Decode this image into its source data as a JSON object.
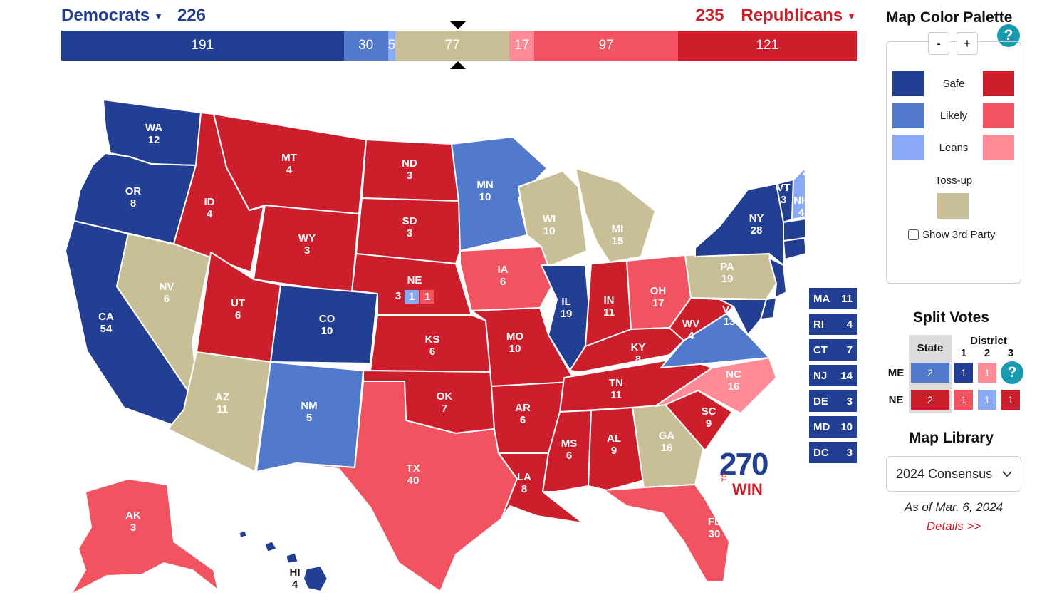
{
  "colors": {
    "dem_safe": "#233f93",
    "dem_likely": "#5179cc",
    "dem_leans": "#8aaaf8",
    "tossup": "#c9bf97",
    "rep_safe": "#cc1f2b",
    "rep_likely": "#f25361",
    "rep_leans": "#ff8b97"
  },
  "header": {
    "dem_label": "Democrats",
    "dem_total": "226",
    "rep_label": "Republicans",
    "rep_total": "235"
  },
  "tally_bar": [
    {
      "value": 191,
      "label": "191",
      "color": "#233f93"
    },
    {
      "value": 30,
      "label": "30",
      "color": "#5179cc"
    },
    {
      "value": 5,
      "label": "5",
      "color": "#8aaaf8"
    },
    {
      "value": 77,
      "label": "77",
      "color": "#c9bf97"
    },
    {
      "value": 17,
      "label": "17",
      "color": "#ff8b97"
    },
    {
      "value": 97,
      "label": "97",
      "color": "#f25361"
    },
    {
      "value": 121,
      "label": "121",
      "color": "#cc1f2b"
    }
  ],
  "states": [
    {
      "abbr": "WA",
      "ev": "12",
      "rating": "dem_safe"
    },
    {
      "abbr": "OR",
      "ev": "8",
      "rating": "dem_safe"
    },
    {
      "abbr": "CA",
      "ev": "54",
      "rating": "dem_safe"
    },
    {
      "abbr": "NV",
      "ev": "6",
      "rating": "tossup"
    },
    {
      "abbr": "ID",
      "ev": "4",
      "rating": "rep_safe"
    },
    {
      "abbr": "MT",
      "ev": "4",
      "rating": "rep_safe"
    },
    {
      "abbr": "WY",
      "ev": "3",
      "rating": "rep_safe"
    },
    {
      "abbr": "UT",
      "ev": "6",
      "rating": "rep_safe"
    },
    {
      "abbr": "AZ",
      "ev": "11",
      "rating": "tossup"
    },
    {
      "abbr": "CO",
      "ev": "10",
      "rating": "dem_safe"
    },
    {
      "abbr": "NM",
      "ev": "5",
      "rating": "dem_likely"
    },
    {
      "abbr": "ND",
      "ev": "3",
      "rating": "rep_safe"
    },
    {
      "abbr": "SD",
      "ev": "3",
      "rating": "rep_safe"
    },
    {
      "abbr": "NE",
      "ev": "",
      "rating": "rep_safe"
    },
    {
      "abbr": "KS",
      "ev": "6",
      "rating": "rep_safe"
    },
    {
      "abbr": "OK",
      "ev": "7",
      "rating": "rep_safe"
    },
    {
      "abbr": "TX",
      "ev": "40",
      "rating": "rep_likely"
    },
    {
      "abbr": "MN",
      "ev": "10",
      "rating": "dem_likely"
    },
    {
      "abbr": "IA",
      "ev": "6",
      "rating": "rep_likely"
    },
    {
      "abbr": "MO",
      "ev": "10",
      "rating": "rep_safe"
    },
    {
      "abbr": "AR",
      "ev": "6",
      "rating": "rep_safe"
    },
    {
      "abbr": "LA",
      "ev": "8",
      "rating": "rep_safe"
    },
    {
      "abbr": "WI",
      "ev": "10",
      "rating": "tossup"
    },
    {
      "abbr": "IL",
      "ev": "19",
      "rating": "dem_safe"
    },
    {
      "abbr": "MI",
      "ev": "15",
      "rating": "tossup"
    },
    {
      "abbr": "IN",
      "ev": "11",
      "rating": "rep_safe"
    },
    {
      "abbr": "OH",
      "ev": "17",
      "rating": "rep_likely"
    },
    {
      "abbr": "KY",
      "ev": "8",
      "rating": "rep_safe"
    },
    {
      "abbr": "TN",
      "ev": "11",
      "rating": "rep_safe"
    },
    {
      "abbr": "MS",
      "ev": "6",
      "rating": "rep_safe"
    },
    {
      "abbr": "AL",
      "ev": "9",
      "rating": "rep_safe"
    },
    {
      "abbr": "GA",
      "ev": "16",
      "rating": "tossup"
    },
    {
      "abbr": "FL",
      "ev": "30",
      "rating": "rep_likely"
    },
    {
      "abbr": "SC",
      "ev": "9",
      "rating": "rep_safe"
    },
    {
      "abbr": "NC",
      "ev": "16",
      "rating": "rep_leans"
    },
    {
      "abbr": "VA",
      "ev": "13",
      "rating": "dem_likely"
    },
    {
      "abbr": "WV",
      "ev": "4",
      "rating": "rep_safe"
    },
    {
      "abbr": "PA",
      "ev": "19",
      "rating": "tossup"
    },
    {
      "abbr": "NY",
      "ev": "28",
      "rating": "dem_safe"
    },
    {
      "abbr": "VT",
      "ev": "3",
      "rating": "dem_safe"
    },
    {
      "abbr": "NH",
      "ev": "4",
      "rating": "dem_leans"
    },
    {
      "abbr": "ME",
      "ev": "",
      "rating": "dem_likely"
    },
    {
      "abbr": "AK",
      "ev": "3",
      "rating": "rep_likely"
    },
    {
      "abbr": "HI",
      "ev": "4",
      "rating": "dem_safe"
    }
  ],
  "ne_districts": [
    "3",
    "1",
    "1"
  ],
  "me_districts": [
    "2",
    "1",
    "1"
  ],
  "small_states": [
    {
      "abbr": "MA",
      "ev": "11"
    },
    {
      "abbr": "RI",
      "ev": "4"
    },
    {
      "abbr": "CT",
      "ev": "7"
    },
    {
      "abbr": "NJ",
      "ev": "14"
    },
    {
      "abbr": "DE",
      "ev": "3"
    },
    {
      "abbr": "MD",
      "ev": "10"
    },
    {
      "abbr": "DC",
      "ev": "3"
    }
  ],
  "logo": {
    "number": "270",
    "to": "TO",
    "win": "WIN"
  },
  "palette": {
    "title": "Map Color Palette",
    "zoom_out": "-",
    "zoom_in": "+",
    "help": "?",
    "safe": "Safe",
    "likely": "Likely",
    "leans": "Leans",
    "tossup": "Toss-up",
    "third_party": "Show 3rd Party"
  },
  "split_votes": {
    "title": "Split Votes",
    "state_header": "State",
    "district_header": "District",
    "district_numbers": [
      "1",
      "2",
      "3"
    ],
    "me": {
      "label": "ME",
      "state": "2",
      "districts": [
        "1",
        "1"
      ]
    },
    "ne": {
      "label": "NE",
      "state": "2",
      "districts": [
        "1",
        "1",
        "1"
      ]
    },
    "help": "?"
  },
  "library": {
    "title": "Map Library",
    "selected": "2024 Consensus",
    "as_of": "As of Mar. 6, 2024",
    "details": "Details >>"
  }
}
